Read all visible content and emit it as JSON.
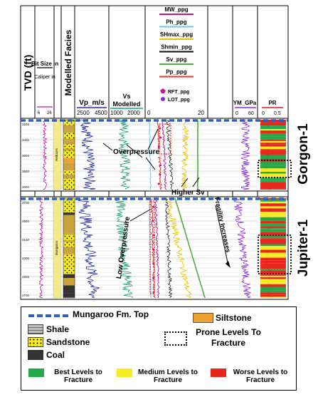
{
  "tracks": {
    "tvd": "TVD (ft)",
    "bit_size": "Bit Size in",
    "caliper": "Caliper in",
    "caliper_scale": [
      "6",
      "26"
    ],
    "facies": "Modelled Facies",
    "vp": "Vp_m/s",
    "vp_scale": [
      "2500",
      "4500"
    ],
    "vs": "Vs Modelled",
    "vs_scale": [
      "1000",
      "2000"
    ],
    "pressure_curves": [
      {
        "label": "MW_ppg",
        "color": "#c2188b"
      },
      {
        "label": "Ph_ppg",
        "color": "#6ec6f2"
      },
      {
        "label": "SHmax_ppg",
        "color": "#e8c400"
      },
      {
        "label": "Shmin_ppg",
        "color": "#111111"
      },
      {
        "label": "Sv_ppg",
        "color": "#4caf3c"
      },
      {
        "label": "Pp_ppg",
        "color": "#e53935"
      }
    ],
    "rft": "RFT_ppg",
    "lot": "LOT_ppg",
    "pressure_scale": [
      "0",
      "20"
    ],
    "ym": "YM_GPa",
    "ym_scale": [
      "0",
      "60"
    ],
    "pr": "PR",
    "pr_scale": [
      "0",
      "0.5"
    ]
  },
  "wells": [
    {
      "name": "Gorgon-1",
      "depth_ticks": [
        "3200",
        "3400",
        "3600",
        "3800",
        "4000"
      ],
      "bit_note": "Reduces"
    },
    {
      "name": "Jupiter-1",
      "depth_ticks": [
        "3700",
        "3900",
        "4100",
        "4300",
        "4500",
        "4700"
      ],
      "bit_note": "Mungaroo"
    }
  ],
  "annotations": {
    "overpressure": "Overpressure",
    "higher_sv": "Higher Sv",
    "fragility": "Fragility Increases",
    "low_overpressure": "Low Overpressure"
  },
  "legend": {
    "mungaroo": "Mungaroo Fm. Top",
    "siltstone": "Siltstone",
    "shale": "Shale",
    "sandstone": "Sandstone",
    "prone": "Prone Levels To Fracture",
    "coal": "Coal",
    "best": "Best Levels to Fracture",
    "medium": "Medium Levels to Fracture",
    "worse": "Worse Levels to Fracture"
  },
  "colors": {
    "best": "#26a74a",
    "medium": "#f6ec1f",
    "worse": "#e8261c",
    "mungaroo": "#2d5fc4",
    "vp": "#2c2c9a",
    "vs": "#1f9e7a",
    "ym": "#8a2bd4",
    "pr": "#d81b1b",
    "caliper": "#c2188b"
  }
}
